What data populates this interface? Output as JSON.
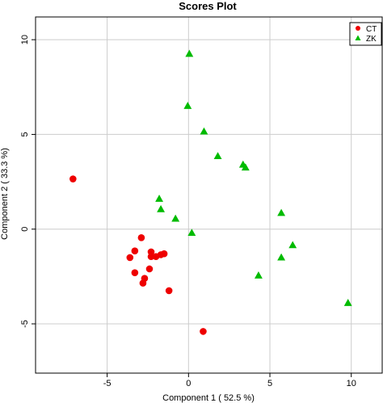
{
  "chart_data": {
    "type": "scatter",
    "title": "Scores Plot",
    "xlabel": "Component 1 ( 52.5 %)",
    "ylabel": "Component 2 ( 33.3 %)",
    "xlim": [
      -9.4,
      11.9
    ],
    "ylim": [
      -7.6,
      11.2
    ],
    "xticks": [
      -5,
      0,
      5,
      10
    ],
    "yticks": [
      -5,
      0,
      5,
      10
    ],
    "grid": true,
    "legend_position": "top-right",
    "series": [
      {
        "name": "CT",
        "color": "#ee0000",
        "marker": "circle",
        "points": [
          [
            -7.1,
            2.65
          ],
          [
            -2.9,
            -0.45
          ],
          [
            -3.3,
            -1.15
          ],
          [
            -3.6,
            -1.5
          ],
          [
            -2.3,
            -1.2
          ],
          [
            -2.3,
            -1.45
          ],
          [
            -2.0,
            -1.45
          ],
          [
            -1.7,
            -1.35
          ],
          [
            -1.5,
            -1.3
          ],
          [
            -2.4,
            -2.1
          ],
          [
            -3.3,
            -2.3
          ],
          [
            -2.7,
            -2.6
          ],
          [
            -2.8,
            -2.85
          ],
          [
            -1.2,
            -3.25
          ],
          [
            0.9,
            -5.4
          ]
        ]
      },
      {
        "name": "ZK",
        "color": "#00bb00",
        "marker": "triangle",
        "points": [
          [
            0.05,
            9.25
          ],
          [
            -0.05,
            6.5
          ],
          [
            0.95,
            5.15
          ],
          [
            1.8,
            3.85
          ],
          [
            3.35,
            3.4
          ],
          [
            3.5,
            3.25
          ],
          [
            -1.8,
            1.6
          ],
          [
            -1.7,
            1.05
          ],
          [
            -0.8,
            0.55
          ],
          [
            0.2,
            -0.2
          ],
          [
            5.7,
            0.85
          ],
          [
            6.4,
            -0.85
          ],
          [
            5.7,
            -1.5
          ],
          [
            4.3,
            -2.45
          ],
          [
            9.8,
            -3.9
          ]
        ]
      }
    ]
  }
}
